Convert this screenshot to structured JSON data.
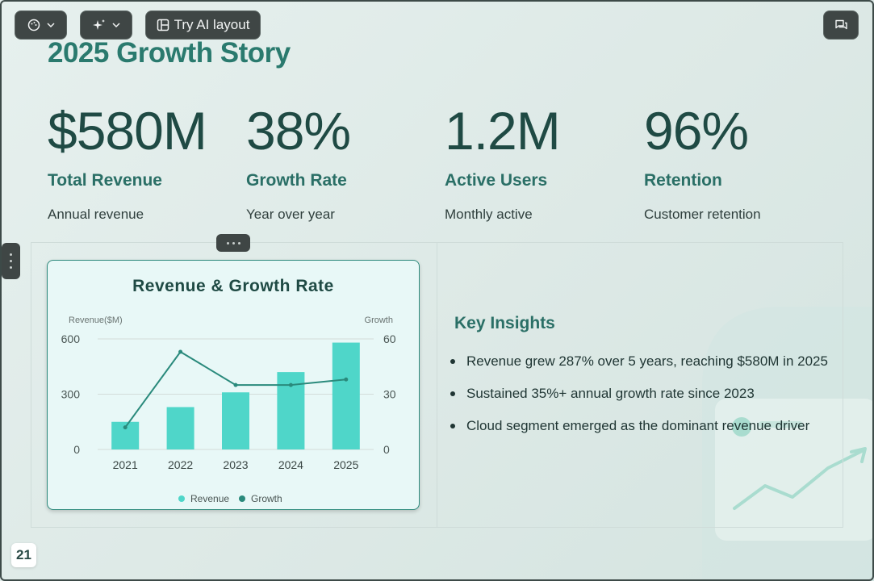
{
  "toolbar": {
    "theme_icon": "palette-icon",
    "ai_icon": "sparkle-icon",
    "try_ai_label": "Try AI layout",
    "comment_icon": "comment-icon"
  },
  "slide": {
    "title": "2025 Growth Story",
    "stats": [
      {
        "value": "$580M",
        "label": "Total Revenue",
        "desc": "Annual revenue"
      },
      {
        "value": "38%",
        "label": "Growth Rate",
        "desc": "Year over year"
      },
      {
        "value": "1.2M",
        "label": "Active Users",
        "desc": "Monthly active"
      },
      {
        "value": "96%",
        "label": "Retention",
        "desc": "Customer retention"
      }
    ],
    "insights": {
      "title": "Key Insights",
      "items": [
        "Revenue grew 287% over 5 years, reaching $580M in 2025",
        "Sustained 35%+ annual growth rate since 2023",
        "Cloud segment emerged as the dominant revenue driver"
      ]
    },
    "page_number": "21"
  },
  "colors": {
    "accent": "#2a7a6e",
    "bar": "#4fd6c9",
    "line": "#2a8a7c",
    "toolbar_bg": "#3f4645"
  },
  "chart_data": {
    "type": "bar",
    "title": "Revenue & Growth Rate",
    "categories": [
      "2021",
      "2022",
      "2023",
      "2024",
      "2025"
    ],
    "series": [
      {
        "name": "Revenue",
        "type": "bar",
        "axis": "left",
        "values": [
          150,
          230,
          310,
          420,
          580
        ]
      },
      {
        "name": "Growth",
        "type": "line",
        "axis": "right",
        "values": [
          12,
          53,
          35,
          35,
          38
        ]
      }
    ],
    "ylabel": "Revenue($M)",
    "y2label": "Growth",
    "ylim": [
      0,
      600
    ],
    "y2lim": [
      0,
      60
    ],
    "yticks": [
      0,
      300,
      600
    ],
    "y2ticks": [
      0,
      30,
      60
    ],
    "grid": true,
    "legend": "bottom"
  }
}
